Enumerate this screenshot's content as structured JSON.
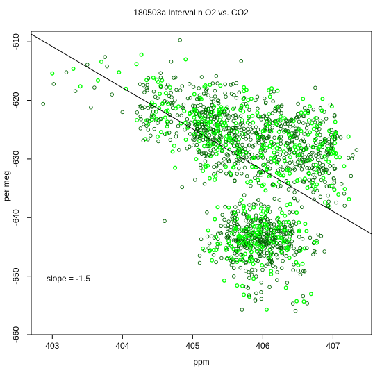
{
  "chart_data": {
    "type": "scatter",
    "title": "180503a   Interval n O2 vs. CO2",
    "xlabel": "ppm",
    "ylabel": "per meg",
    "xlim": [
      402.7,
      407.55
    ],
    "ylim": [
      -660,
      -608.2
    ],
    "x_ticks": [
      403,
      404,
      405,
      406,
      407
    ],
    "y_ticks": [
      -610,
      -620,
      -630,
      -640,
      -650,
      -660
    ],
    "annotation": "slope =  -1.5",
    "regression_line": {
      "slope": -1.5,
      "points": [
        [
          402.7,
          -608.7
        ],
        [
          407.55,
          -642.8
        ]
      ]
    },
    "series_colors": [
      "#00ff00",
      "#006400"
    ],
    "grid": false,
    "legend": "none",
    "clusters_note": "approx. 1500 points; upper cloud roughly 405-407 ppm at -615 to -635 per meg, lower cloud roughly 405.3-406.7 ppm at -638 to -650 per meg",
    "points_sample": [
      [
        402.87,
        -620.6
      ],
      [
        403.0,
        -615.4
      ],
      [
        403.02,
        -617.2
      ],
      [
        403.2,
        -615.2
      ],
      [
        403.3,
        -614.6
      ],
      [
        403.33,
        -618.4
      ],
      [
        403.4,
        -617.6
      ],
      [
        403.5,
        -613.9
      ],
      [
        403.55,
        -621.2
      ],
      [
        403.6,
        -617.8
      ],
      [
        403.65,
        -616.6
      ],
      [
        403.7,
        -613.4
      ],
      [
        403.75,
        -612.6
      ],
      [
        403.78,
        -614.2
      ],
      [
        403.85,
        -619.0
      ],
      [
        403.95,
        -615.2
      ],
      [
        404.0,
        -622.0
      ],
      [
        404.05,
        -618.0
      ],
      [
        404.2,
        -613.8
      ],
      [
        404.27,
        -612.2
      ],
      [
        404.3,
        -617.4
      ],
      [
        404.4,
        -626.0
      ],
      [
        404.5,
        -619.6
      ],
      [
        404.55,
        -625.4
      ],
      [
        404.6,
        -640.6
      ],
      [
        404.68,
        -617.8
      ],
      [
        404.75,
        -631.5
      ],
      [
        404.82,
        -609.7
      ],
      [
        404.85,
        -634.8
      ],
      [
        404.9,
        -613.0
      ]
    ]
  }
}
